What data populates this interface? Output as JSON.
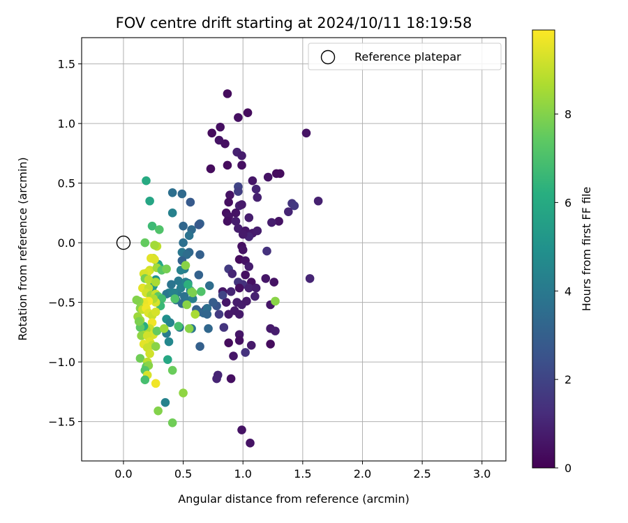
{
  "chart_data": {
    "type": "scatter",
    "title": "FOV centre drift starting at 2024/10/11 18:19:58",
    "xlabel": "Angular distance from reference (arcmin)",
    "ylabel": "Rotation from reference (arcmin)",
    "xlim": [
      -0.35,
      3.2
    ],
    "ylim": [
      -1.83,
      1.72
    ],
    "xticks": [
      0.0,
      0.5,
      1.0,
      1.5,
      2.0,
      2.5,
      3.0
    ],
    "xtick_labels": [
      "0.0",
      "0.5",
      "1.0",
      "1.5",
      "2.0",
      "2.5",
      "3.0"
    ],
    "yticks": [
      -1.5,
      -1.0,
      -0.5,
      0.0,
      0.5,
      1.0,
      1.5
    ],
    "ytick_labels": [
      "−1.5",
      "−1.0",
      "−0.5",
      "0.0",
      "0.5",
      "1.0",
      "1.5"
    ],
    "grid": true,
    "legend": {
      "position": "top-right",
      "entries": [
        {
          "label": "Reference platepar",
          "marker": "open-circle"
        }
      ]
    },
    "reference_point": {
      "x": 0.0,
      "y": 0.0
    },
    "colorbar": {
      "label": "Hours from first FF file",
      "colormap": "viridis",
      "range": [
        0,
        9.9
      ],
      "ticks": [
        0,
        2,
        4,
        6,
        8
      ],
      "tick_labels": [
        "0",
        "2",
        "4",
        "6",
        "8"
      ]
    },
    "points": [
      [
        0.87,
        1.25,
        0.3
      ],
      [
        1.04,
        1.09,
        0.3
      ],
      [
        0.96,
        1.05,
        0.4
      ],
      [
        0.81,
        0.97,
        0.4
      ],
      [
        0.74,
        0.92,
        0.3
      ],
      [
        1.53,
        0.92,
        0.5
      ],
      [
        0.8,
        0.86,
        0.5
      ],
      [
        0.85,
        0.83,
        0.4
      ],
      [
        0.95,
        0.76,
        0.9
      ],
      [
        0.99,
        0.73,
        0.8
      ],
      [
        0.87,
        0.65,
        0.3
      ],
      [
        0.99,
        0.65,
        0.4
      ],
      [
        0.73,
        0.62,
        0.3
      ],
      [
        1.28,
        0.58,
        0.3
      ],
      [
        1.31,
        0.58,
        0.3
      ],
      [
        1.21,
        0.55,
        0.5
      ],
      [
        1.08,
        0.52,
        0.6
      ],
      [
        0.96,
        0.47,
        2.0
      ],
      [
        1.11,
        0.45,
        1.0
      ],
      [
        0.96,
        0.43,
        1.8
      ],
      [
        0.89,
        0.4,
        0.5
      ],
      [
        1.12,
        0.38,
        0.9
      ],
      [
        0.88,
        0.34,
        0.4
      ],
      [
        1.63,
        0.35,
        0.9
      ],
      [
        1.41,
        0.33,
        1.5
      ],
      [
        1.43,
        0.31,
        1.6
      ],
      [
        0.97,
        0.31,
        0.9
      ],
      [
        0.99,
        0.32,
        0.7
      ],
      [
        1.38,
        0.26,
        1.0
      ],
      [
        0.86,
        0.25,
        0.4
      ],
      [
        0.94,
        0.25,
        0.5
      ],
      [
        0.88,
        0.22,
        0.5
      ],
      [
        1.05,
        0.21,
        0.8
      ],
      [
        1.3,
        0.18,
        0.5
      ],
      [
        1.24,
        0.17,
        0.8
      ],
      [
        0.87,
        0.18,
        0.4
      ],
      [
        0.94,
        0.18,
        0.8
      ],
      [
        0.96,
        0.12,
        0.8
      ],
      [
        1.02,
        0.1,
        0.6
      ],
      [
        1.08,
        0.08,
        0.7
      ],
      [
        1.12,
        0.1,
        0.8
      ],
      [
        1.05,
        0.05,
        1.0
      ],
      [
        1.0,
        0.07,
        0.7
      ],
      [
        0.99,
        -0.03,
        0.4
      ],
      [
        1.0,
        -0.06,
        0.5
      ],
      [
        0.97,
        -0.14,
        0.3
      ],
      [
        1.2,
        -0.07,
        1.4
      ],
      [
        1.02,
        -0.15,
        0.5
      ],
      [
        1.05,
        -0.2,
        0.8
      ],
      [
        0.88,
        -0.22,
        1.7
      ],
      [
        0.91,
        -0.26,
        1.0
      ],
      [
        1.02,
        -0.27,
        0.4
      ],
      [
        1.07,
        -0.33,
        0.4
      ],
      [
        1.19,
        -0.3,
        0.6
      ],
      [
        1.26,
        -0.33,
        0.5
      ],
      [
        0.96,
        -0.33,
        1.5
      ],
      [
        1.0,
        -0.35,
        1.4
      ],
      [
        0.97,
        -0.38,
        0.4
      ],
      [
        1.05,
        -0.38,
        0.9
      ],
      [
        1.11,
        -0.38,
        0.8
      ],
      [
        1.56,
        -0.3,
        1.0
      ],
      [
        0.86,
        -0.5,
        0.6
      ],
      [
        0.95,
        -0.5,
        0.8
      ],
      [
        0.99,
        -0.52,
        0.8
      ],
      [
        1.03,
        -0.49,
        0.7
      ],
      [
        1.1,
        -0.45,
        0.9
      ],
      [
        1.23,
        -0.52,
        0.6
      ],
      [
        0.83,
        -0.41,
        0.6
      ],
      [
        0.9,
        -0.41,
        1.0
      ],
      [
        0.93,
        -0.57,
        0.7
      ],
      [
        0.88,
        -0.6,
        0.7
      ],
      [
        0.97,
        -0.6,
        0.7
      ],
      [
        0.84,
        -0.71,
        1.5
      ],
      [
        0.97,
        -0.77,
        0.6
      ],
      [
        1.23,
        -0.72,
        0.7
      ],
      [
        1.27,
        -0.74,
        0.8
      ],
      [
        0.97,
        -0.82,
        0.4
      ],
      [
        1.07,
        -0.86,
        0.7
      ],
      [
        1.23,
        -0.85,
        0.3
      ],
      [
        0.88,
        -0.84,
        0.3
      ],
      [
        1.02,
        -0.92,
        1.4
      ],
      [
        0.92,
        -0.95,
        0.6
      ],
      [
        0.79,
        -1.11,
        1.0
      ],
      [
        0.78,
        -1.14,
        1.0
      ],
      [
        0.9,
        -1.14,
        0.4
      ],
      [
        0.99,
        -1.57,
        0.5
      ],
      [
        1.06,
        -1.68,
        0.5
      ],
      [
        0.69,
        -0.56,
        1.4
      ],
      [
        0.8,
        -0.6,
        1.7
      ],
      [
        0.78,
        -0.53,
        2.6
      ],
      [
        0.83,
        -0.44,
        2.0
      ],
      [
        0.72,
        -0.36,
        3.5
      ],
      [
        0.75,
        -0.5,
        2.9
      ],
      [
        0.63,
        -0.27,
        3.1
      ],
      [
        0.64,
        -0.1,
        3.0
      ],
      [
        0.64,
        0.16,
        3.1
      ],
      [
        0.63,
        0.15,
        2.8
      ],
      [
        0.56,
        0.34,
        2.8
      ],
      [
        0.57,
        0.11,
        3.4
      ],
      [
        0.55,
        0.06,
        3.7
      ],
      [
        0.5,
        0.14,
        3.3
      ],
      [
        0.5,
        0.0,
        3.6
      ],
      [
        0.49,
        -0.08,
        3.9
      ],
      [
        0.55,
        -0.08,
        3.3
      ],
      [
        0.53,
        -0.1,
        3.5
      ],
      [
        0.49,
        -0.15,
        3.1
      ],
      [
        0.51,
        -0.22,
        4.1
      ],
      [
        0.48,
        -0.23,
        4.3
      ],
      [
        0.46,
        -0.32,
        4.0
      ],
      [
        0.4,
        -0.35,
        3.8
      ],
      [
        0.45,
        -0.42,
        4.0
      ],
      [
        0.38,
        -0.42,
        4.6
      ],
      [
        0.36,
        -0.43,
        3.9
      ],
      [
        0.48,
        -0.38,
        4.2
      ],
      [
        0.52,
        -0.33,
        4.3
      ],
      [
        0.54,
        -0.34,
        3.7
      ],
      [
        0.56,
        -0.4,
        4.4
      ],
      [
        0.51,
        -0.45,
        3.7
      ],
      [
        0.49,
        -0.51,
        3.4
      ],
      [
        0.53,
        -0.49,
        3.8
      ],
      [
        0.58,
        -0.47,
        4.2
      ],
      [
        0.61,
        -0.56,
        3.0
      ],
      [
        0.67,
        -0.59,
        3.3
      ],
      [
        0.7,
        -0.55,
        3.6
      ],
      [
        0.7,
        -0.6,
        3.2
      ],
      [
        0.64,
        -0.87,
        3.0
      ],
      [
        0.63,
        -0.58,
        3.2
      ],
      [
        0.57,
        -0.72,
        3.9
      ],
      [
        0.71,
        -0.72,
        3.3
      ],
      [
        0.47,
        -0.71,
        3.7
      ],
      [
        0.41,
        -0.42,
        4.1
      ],
      [
        0.44,
        -0.48,
        3.7
      ],
      [
        0.41,
        0.25,
        4.3
      ],
      [
        0.41,
        0.42,
        3.6
      ],
      [
        0.49,
        0.41,
        3.4
      ],
      [
        0.42,
        -0.42,
        4.3
      ],
      [
        0.36,
        -0.64,
        4.9
      ],
      [
        0.39,
        -0.67,
        4.4
      ],
      [
        0.36,
        -0.76,
        4.1
      ],
      [
        0.38,
        -0.83,
        4.6
      ],
      [
        0.35,
        -1.34,
        4.4
      ],
      [
        0.24,
        -0.4,
        4.6
      ],
      [
        0.25,
        -0.36,
        5.3
      ],
      [
        0.27,
        -0.31,
        5.0
      ],
      [
        0.29,
        -0.18,
        5.4
      ],
      [
        0.3,
        -0.2,
        6.0
      ],
      [
        0.19,
        0.52,
        6.0
      ],
      [
        0.22,
        0.35,
        5.8
      ],
      [
        0.24,
        0.14,
        6.7
      ],
      [
        0.3,
        0.11,
        7.1
      ],
      [
        0.28,
        -0.03,
        8.9
      ],
      [
        0.18,
        0.0,
        7.5
      ],
      [
        0.26,
        -0.02,
        8.5
      ],
      [
        0.25,
        -0.13,
        9.0
      ],
      [
        0.23,
        -0.13,
        9.5
      ],
      [
        0.26,
        -0.14,
        9.4
      ],
      [
        0.22,
        -0.23,
        9.2
      ],
      [
        0.2,
        -0.25,
        9.4
      ],
      [
        0.17,
        -0.26,
        9.3
      ],
      [
        0.28,
        -0.21,
        8.5
      ],
      [
        0.32,
        -0.23,
        7.3
      ],
      [
        0.18,
        -0.3,
        7.8
      ],
      [
        0.21,
        -0.31,
        8.9
      ],
      [
        0.27,
        -0.33,
        8.6
      ],
      [
        0.16,
        -0.38,
        9.5
      ],
      [
        0.21,
        -0.38,
        9.0
      ],
      [
        0.19,
        -0.42,
        9.2
      ],
      [
        0.23,
        -0.44,
        8.4
      ],
      [
        0.27,
        -0.43,
        9.1
      ],
      [
        0.29,
        -0.45,
        7.4
      ],
      [
        0.32,
        -0.47,
        6.8
      ],
      [
        0.31,
        -0.53,
        6.6
      ],
      [
        0.27,
        -0.5,
        9.3
      ],
      [
        0.25,
        -0.47,
        8.7
      ],
      [
        0.21,
        -0.49,
        9.8
      ],
      [
        0.17,
        -0.5,
        9.6
      ],
      [
        0.13,
        -0.49,
        8.2
      ],
      [
        0.14,
        -0.55,
        8.1
      ],
      [
        0.16,
        -0.56,
        9.0
      ],
      [
        0.19,
        -0.55,
        9.7
      ],
      [
        0.21,
        -0.59,
        9.4
      ],
      [
        0.24,
        -0.61,
        9.1
      ],
      [
        0.27,
        -0.58,
        9.3
      ],
      [
        0.24,
        -0.67,
        9.7
      ],
      [
        0.22,
        -0.72,
        9.1
      ],
      [
        0.19,
        -0.73,
        8.6
      ],
      [
        0.17,
        -0.7,
        6.2
      ],
      [
        0.14,
        -0.71,
        7.4
      ],
      [
        0.12,
        -0.62,
        8.4
      ],
      [
        0.14,
        -0.65,
        8.4
      ],
      [
        0.11,
        -0.48,
        8.0
      ],
      [
        0.13,
        -0.66,
        7.9
      ],
      [
        0.25,
        -0.77,
        9.3
      ],
      [
        0.28,
        -0.74,
        7.5
      ],
      [
        0.15,
        -0.78,
        8.2
      ],
      [
        0.2,
        -0.78,
        9.2
      ],
      [
        0.22,
        -0.83,
        9.4
      ],
      [
        0.24,
        -0.86,
        9.0
      ],
      [
        0.17,
        -0.85,
        9.5
      ],
      [
        0.2,
        -0.88,
        9.1
      ],
      [
        0.27,
        -0.87,
        8.1
      ],
      [
        0.22,
        -0.93,
        9.2
      ],
      [
        0.14,
        -0.97,
        7.7
      ],
      [
        0.2,
        -1.0,
        8.9
      ],
      [
        0.19,
        -1.04,
        7.4
      ],
      [
        0.21,
        -1.03,
        8.1
      ],
      [
        0.18,
        -1.07,
        7.2
      ],
      [
        0.2,
        -1.11,
        9.3
      ],
      [
        0.18,
        -1.15,
        6.9
      ],
      [
        0.27,
        -1.18,
        9.7
      ],
      [
        0.37,
        -0.98,
        5.9
      ],
      [
        0.41,
        -1.07,
        7.6
      ],
      [
        0.29,
        -1.41,
        8.0
      ],
      [
        0.41,
        -1.51,
        7.7
      ],
      [
        0.5,
        -1.26,
        8.2
      ],
      [
        0.34,
        -0.72,
        8.4
      ],
      [
        0.46,
        -0.7,
        6.9
      ],
      [
        0.57,
        -0.41,
        7.8
      ],
      [
        0.58,
        -0.42,
        7.9
      ],
      [
        0.6,
        -0.6,
        8.6
      ],
      [
        0.55,
        -0.72,
        8.1
      ],
      [
        0.53,
        -0.52,
        8.1
      ],
      [
        0.54,
        -0.35,
        6.3
      ],
      [
        0.65,
        -0.41,
        7.1
      ],
      [
        0.52,
        -0.19,
        8.1
      ],
      [
        0.43,
        -0.47,
        7.1
      ],
      [
        1.27,
        -0.49,
        8.1
      ],
      [
        0.36,
        -0.22,
        7.8
      ]
    ]
  }
}
